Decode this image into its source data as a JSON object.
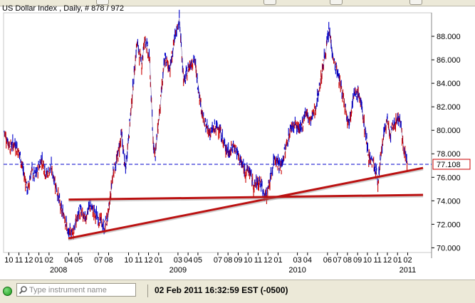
{
  "window": {
    "title": "US Dollar Index , Daily, # 878 / 972"
  },
  "status": {
    "search_placeholder": "Type instrument name",
    "datetime": "02 Feb 2011 16:32:59  EST (-0500)"
  },
  "colors": {
    "up": "#cc0000",
    "down": "#0000cc",
    "trendline": "#bb1111",
    "hline": "#0000cc",
    "bg": "#ffffff",
    "status_ok": "#1a9a1a"
  },
  "chart_data": {
    "type": "line",
    "title": "US Dollar Index , Daily, # 878 / 972",
    "ylim": [
      69.6,
      90.0
    ],
    "yticks": [
      "70.000",
      "72.000",
      "74.000",
      "76.000",
      "78.000",
      "80.000",
      "82.000",
      "84.000",
      "86.000",
      "88.000"
    ],
    "ytick_values": [
      70,
      72,
      74,
      76,
      78,
      80,
      82,
      84,
      86,
      88
    ],
    "current_value": 77.108,
    "current_label": "77.108",
    "xlim": [
      "2007-09-15",
      "2011-04-15"
    ],
    "month_ticks": [
      {
        "label": "10",
        "date": "2007-10-01"
      },
      {
        "label": "11",
        "date": "2007-11-01"
      },
      {
        "label": "12",
        "date": "2007-12-01"
      },
      {
        "label": "01",
        "date": "2008-01-01"
      },
      {
        "label": "02",
        "date": "2008-02-01"
      },
      {
        "label": "04",
        "date": "2008-04-01"
      },
      {
        "label": "05",
        "date": "2008-05-01"
      },
      {
        "label": "07",
        "date": "2008-07-01"
      },
      {
        "label": "08",
        "date": "2008-08-01"
      },
      {
        "label": "10",
        "date": "2008-10-01"
      },
      {
        "label": "11",
        "date": "2008-11-01"
      },
      {
        "label": "12",
        "date": "2008-12-01"
      },
      {
        "label": "01",
        "date": "2009-01-01"
      },
      {
        "label": "03",
        "date": "2009-03-01"
      },
      {
        "label": "04",
        "date": "2009-04-01"
      },
      {
        "label": "05",
        "date": "2009-05-01"
      },
      {
        "label": "07",
        "date": "2009-07-01"
      },
      {
        "label": "08",
        "date": "2009-08-01"
      },
      {
        "label": "09",
        "date": "2009-09-01"
      },
      {
        "label": "10",
        "date": "2009-10-01"
      },
      {
        "label": "11",
        "date": "2009-11-01"
      },
      {
        "label": "12",
        "date": "2009-12-01"
      },
      {
        "label": "01",
        "date": "2010-01-01"
      },
      {
        "label": "03",
        "date": "2010-03-01"
      },
      {
        "label": "04",
        "date": "2010-04-01"
      },
      {
        "label": "06",
        "date": "2010-06-01"
      },
      {
        "label": "07",
        "date": "2010-07-01"
      },
      {
        "label": "08",
        "date": "2010-08-01"
      },
      {
        "label": "09",
        "date": "2010-09-01"
      },
      {
        "label": "10",
        "date": "2010-10-01"
      },
      {
        "label": "11",
        "date": "2010-11-01"
      },
      {
        "label": "12",
        "date": "2010-12-01"
      },
      {
        "label": "01",
        "date": "2011-01-01"
      },
      {
        "label": "02",
        "date": "2011-02-01"
      }
    ],
    "year_labels": [
      {
        "label": "2008",
        "date": "2008-03-01"
      },
      {
        "label": "2009",
        "date": "2009-03-01"
      },
      {
        "label": "2010",
        "date": "2010-03-01"
      },
      {
        "label": "2011",
        "date": "2011-02-01"
      }
    ],
    "series": [
      {
        "values": [
          [
            "2007-09-17",
            79.9
          ],
          [
            "2007-10-05",
            78.6
          ],
          [
            "2007-10-20",
            78.9
          ],
          [
            "2007-11-05",
            77.8
          ],
          [
            "2007-11-20",
            75.8
          ],
          [
            "2007-11-28",
            74.9
          ],
          [
            "2007-12-10",
            76.6
          ],
          [
            "2007-12-20",
            76.0
          ],
          [
            "2008-01-10",
            77.6
          ],
          [
            "2008-01-25",
            76.2
          ],
          [
            "2008-02-08",
            76.8
          ],
          [
            "2008-02-22",
            75.4
          ],
          [
            "2008-03-10",
            73.1
          ],
          [
            "2008-03-20",
            72.8
          ],
          [
            "2008-03-31",
            71.1
          ],
          [
            "2008-04-15",
            71.5
          ],
          [
            "2008-04-22",
            72.0
          ],
          [
            "2008-05-05",
            73.2
          ],
          [
            "2008-05-20",
            72.4
          ],
          [
            "2008-06-05",
            73.6
          ],
          [
            "2008-06-20",
            72.9
          ],
          [
            "2008-07-10",
            72.2
          ],
          [
            "2008-07-18",
            71.6
          ],
          [
            "2008-08-01",
            72.9
          ],
          [
            "2008-08-15",
            76.5
          ],
          [
            "2008-08-25",
            77.2
          ],
          [
            "2008-09-10",
            79.6
          ],
          [
            "2008-09-22",
            76.6
          ],
          [
            "2008-10-10",
            82.1
          ],
          [
            "2008-10-27",
            87.5
          ],
          [
            "2008-11-10",
            85.6
          ],
          [
            "2008-11-21",
            87.9
          ],
          [
            "2008-12-05",
            85.8
          ],
          [
            "2008-12-15",
            79.2
          ],
          [
            "2008-12-22",
            78.0
          ],
          [
            "2009-01-05",
            81.8
          ],
          [
            "2009-01-20",
            86.1
          ],
          [
            "2009-02-05",
            85.3
          ],
          [
            "2009-02-20",
            87.8
          ],
          [
            "2009-03-05",
            89.5
          ],
          [
            "2009-03-20",
            84.0
          ],
          [
            "2009-04-05",
            85.5
          ],
          [
            "2009-04-20",
            86.1
          ],
          [
            "2009-05-05",
            83.2
          ],
          [
            "2009-05-20",
            80.6
          ],
          [
            "2009-06-05",
            79.8
          ],
          [
            "2009-06-20",
            80.1
          ],
          [
            "2009-07-05",
            80.3
          ],
          [
            "2009-07-20",
            78.8
          ],
          [
            "2009-08-05",
            78.1
          ],
          [
            "2009-08-20",
            78.7
          ],
          [
            "2009-09-05",
            77.6
          ],
          [
            "2009-09-20",
            76.6
          ],
          [
            "2009-10-05",
            76.6
          ],
          [
            "2009-10-20",
            75.2
          ],
          [
            "2009-11-05",
            75.8
          ],
          [
            "2009-11-25",
            74.3
          ],
          [
            "2009-12-10",
            76.0
          ],
          [
            "2009-12-22",
            77.8
          ],
          [
            "2010-01-10",
            76.8
          ],
          [
            "2010-01-25",
            78.5
          ],
          [
            "2010-02-10",
            80.3
          ],
          [
            "2010-02-25",
            80.5
          ],
          [
            "2010-03-10",
            79.8
          ],
          [
            "2010-03-25",
            81.6
          ],
          [
            "2010-04-10",
            80.8
          ],
          [
            "2010-04-25",
            81.8
          ],
          [
            "2010-05-10",
            84.0
          ],
          [
            "2010-05-25",
            86.5
          ],
          [
            "2010-06-07",
            88.5
          ],
          [
            "2010-06-20",
            86.0
          ],
          [
            "2010-07-05",
            84.5
          ],
          [
            "2010-07-20",
            82.8
          ],
          [
            "2010-08-05",
            80.6
          ],
          [
            "2010-08-20",
            82.9
          ],
          [
            "2010-09-05",
            83.2
          ],
          [
            "2010-09-20",
            80.9
          ],
          [
            "2010-10-05",
            77.9
          ],
          [
            "2010-10-20",
            77.2
          ],
          [
            "2010-11-04",
            75.7
          ],
          [
            "2010-11-15",
            78.6
          ],
          [
            "2010-11-30",
            81.0
          ],
          [
            "2010-12-10",
            79.6
          ],
          [
            "2010-12-22",
            80.5
          ],
          [
            "2011-01-07",
            81.2
          ],
          [
            "2011-01-20",
            78.6
          ],
          [
            "2011-02-01",
            77.1
          ]
        ]
      }
    ],
    "horizontal_lines": [
      {
        "y": 77.108,
        "style": "dashed"
      }
    ],
    "annotations": [
      {
        "type": "trendline",
        "from": [
          "2008-03-31",
          70.8
        ],
        "to": [
          "2011-03-20",
          76.8
        ]
      },
      {
        "type": "trendline",
        "from": [
          "2008-04-01",
          74.1
        ],
        "to": [
          "2011-03-20",
          74.5
        ]
      }
    ]
  }
}
